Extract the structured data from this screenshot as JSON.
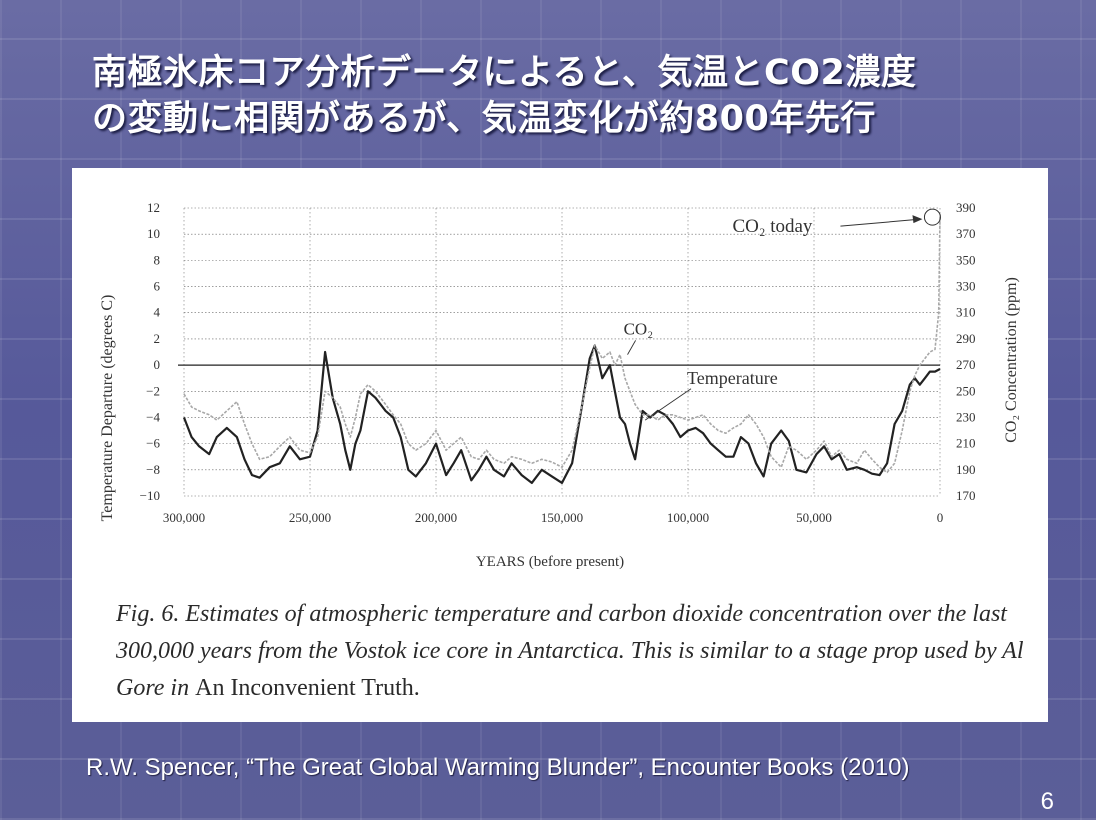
{
  "slide": {
    "title_line1": "南極氷床コア分析データによると、気温とCO2濃度",
    "title_line2": "の変動に相関があるが、気温変化が約800年先行",
    "citation": "R.W. Spencer, “The Great Global Warming Blunder”, Encounter Books (2010)",
    "slide_number": "6",
    "caption_prefix": "Fig. 6.  Estimates of atmospheric temperature and carbon dioxide concentration over the last 300,000 years from the Vostok ice core in Antarctica. This is similar to a stage prop used by Al Gore in ",
    "caption_book": "An Inconvenient Truth."
  },
  "chart_data": {
    "type": "line",
    "title": "",
    "xlabel": "YEARS (before present)",
    "ylabel": "Temperature Departure (degrees C)",
    "y2label": "CO₂ Concentration (ppm)",
    "xlim": [
      300000,
      0
    ],
    "ylim": [
      -10,
      12
    ],
    "y2lim": [
      170,
      390
    ],
    "grid": true,
    "x_ticks": [
      "300,000",
      "250,000",
      "200,000",
      "150,000",
      "100,000",
      "50,000",
      "0"
    ],
    "x_tick_values": [
      300000,
      250000,
      200000,
      150000,
      100000,
      50000,
      0
    ],
    "y_ticks": [
      "12",
      "10",
      "8",
      "6",
      "4",
      "2",
      "0",
      "−2",
      "−4",
      "−6",
      "−8",
      "−10"
    ],
    "y_tick_values": [
      12,
      10,
      8,
      6,
      4,
      2,
      0,
      -2,
      -4,
      -6,
      -8,
      -10
    ],
    "y2_ticks": [
      "390",
      "370",
      "350",
      "330",
      "310",
      "290",
      "270",
      "250",
      "230",
      "210",
      "190",
      "170"
    ],
    "y2_tick_values": [
      390,
      370,
      350,
      330,
      310,
      290,
      270,
      250,
      230,
      210,
      190,
      170
    ],
    "annotations": [
      {
        "text": "CO₂ today",
        "x": 3000,
        "y": 11.3
      },
      {
        "text": "CO₂",
        "x": 120000,
        "y": 2.5
      },
      {
        "text": "Temperature",
        "x": 98000,
        "y": -1.2
      }
    ],
    "series": [
      {
        "name": "Temperature",
        "axis": "left",
        "x": [
          300000,
          297000,
          294000,
          290000,
          287000,
          283000,
          279000,
          276000,
          273000,
          270000,
          266000,
          262000,
          258000,
          254000,
          250000,
          247000,
          244000,
          241000,
          238000,
          236000,
          234000,
          232000,
          230000,
          227000,
          224000,
          220000,
          217000,
          214000,
          211000,
          208000,
          204000,
          200000,
          196000,
          193000,
          190000,
          186000,
          183000,
          180000,
          177000,
          173000,
          170000,
          166000,
          162000,
          158000,
          154000,
          150000,
          146000,
          142000,
          139000,
          137000,
          134000,
          131000,
          129000,
          127000,
          125000,
          123000,
          121000,
          118000,
          115000,
          112000,
          109000,
          106000,
          103000,
          100000,
          97000,
          94000,
          91000,
          88000,
          85000,
          82000,
          79000,
          76000,
          73000,
          70000,
          67000,
          63000,
          60000,
          57000,
          53000,
          49000,
          46000,
          43000,
          40000,
          37000,
          33000,
          30000,
          27000,
          24000,
          21000,
          18000,
          15000,
          12000,
          10000,
          8000,
          6000,
          4000,
          2000,
          0
        ],
        "values": [
          -4,
          -5.5,
          -6.2,
          -6.8,
          -5.5,
          -4.8,
          -5.5,
          -7.2,
          -8.4,
          -8.6,
          -7.8,
          -7.5,
          -6.2,
          -7.2,
          -7,
          -5,
          1,
          -2.5,
          -4.5,
          -6.5,
          -8,
          -6,
          -5,
          -2,
          -2.5,
          -3.5,
          -4,
          -5.5,
          -8,
          -8.5,
          -7.5,
          -6,
          -8.4,
          -7.5,
          -6.5,
          -8.8,
          -8,
          -7,
          -8,
          -8.5,
          -7.5,
          -8.4,
          -9,
          -8,
          -8.5,
          -9,
          -7.5,
          -3,
          0.5,
          1.5,
          -1,
          0,
          -2,
          -4,
          -4.5,
          -6,
          -7.2,
          -3.5,
          -4,
          -3.5,
          -3.8,
          -4.5,
          -5.5,
          -5,
          -4.8,
          -5.2,
          -6,
          -6.5,
          -7,
          -7,
          -5.5,
          -6,
          -7.5,
          -8.5,
          -6,
          -5,
          -5.8,
          -8,
          -8.2,
          -6.8,
          -6.2,
          -7.2,
          -6.8,
          -8,
          -7.8,
          -8,
          -8.3,
          -8.4,
          -7.5,
          -4.5,
          -3.5,
          -1.5,
          -1,
          -1.5,
          -1,
          -0.5,
          -0.5,
          -0.3
        ]
      },
      {
        "name": "CO₂",
        "axis": "right",
        "x": [
          300000,
          297000,
          294000,
          290000,
          287000,
          283000,
          279000,
          276000,
          273000,
          270000,
          266000,
          262000,
          258000,
          254000,
          250000,
          247000,
          244000,
          241000,
          238000,
          236000,
          234000,
          232000,
          230000,
          227000,
          224000,
          220000,
          217000,
          214000,
          211000,
          208000,
          204000,
          200000,
          196000,
          193000,
          190000,
          186000,
          183000,
          180000,
          177000,
          173000,
          170000,
          166000,
          162000,
          158000,
          154000,
          150000,
          146000,
          142000,
          139000,
          137000,
          134000,
          131000,
          129000,
          127000,
          125000,
          123000,
          121000,
          118000,
          115000,
          112000,
          109000,
          106000,
          103000,
          100000,
          97000,
          94000,
          91000,
          88000,
          85000,
          82000,
          79000,
          76000,
          73000,
          70000,
          67000,
          63000,
          60000,
          57000,
          53000,
          49000,
          46000,
          43000,
          40000,
          37000,
          33000,
          30000,
          27000,
          24000,
          21000,
          18000,
          15000,
          12000,
          10000,
          8000,
          6000,
          4000,
          2000,
          500,
          0
        ],
        "values": [
          248,
          238,
          235,
          232,
          228,
          235,
          242,
          225,
          210,
          198,
          200,
          208,
          215,
          205,
          203,
          215,
          250,
          245,
          238,
          225,
          215,
          230,
          248,
          255,
          250,
          240,
          232,
          225,
          210,
          205,
          210,
          220,
          205,
          210,
          215,
          200,
          198,
          205,
          198,
          195,
          200,
          198,
          195,
          198,
          196,
          192,
          205,
          240,
          268,
          285,
          275,
          280,
          270,
          278,
          260,
          250,
          240,
          232,
          232,
          228,
          232,
          232,
          230,
          228,
          230,
          232,
          225,
          220,
          218,
          222,
          225,
          232,
          225,
          215,
          200,
          192,
          208,
          205,
          198,
          205,
          212,
          200,
          205,
          198,
          195,
          205,
          198,
          192,
          188,
          195,
          220,
          250,
          262,
          270,
          275,
          280,
          282,
          310,
          385
        ]
      }
    ]
  }
}
